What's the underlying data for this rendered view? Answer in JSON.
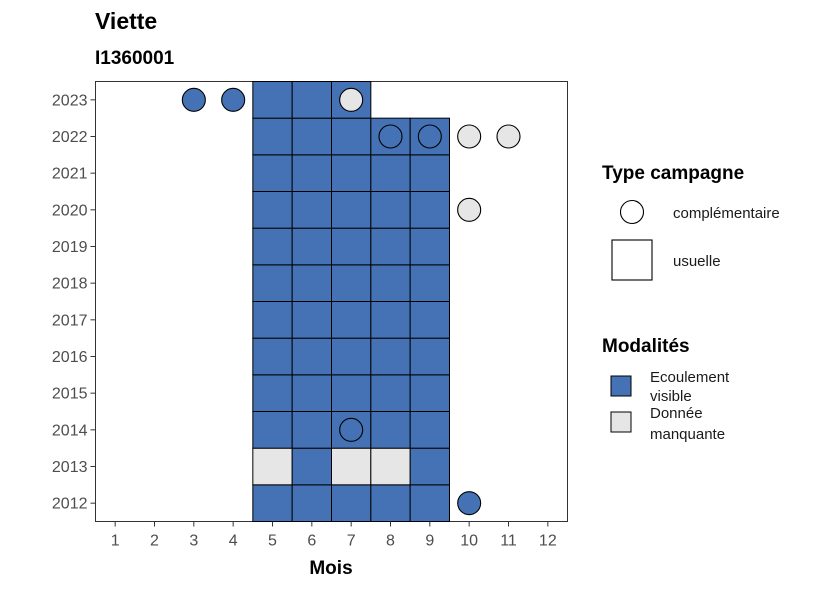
{
  "title": "Viette",
  "subtitle": "I1360001",
  "chart_data": {
    "type": "heatmap",
    "xlabel": "Mois",
    "x_ticks": [
      1,
      2,
      3,
      4,
      5,
      6,
      7,
      8,
      9,
      10,
      11,
      12
    ],
    "y_ticks": [
      2012,
      2013,
      2014,
      2015,
      2016,
      2017,
      2018,
      2019,
      2020,
      2021,
      2022,
      2023
    ],
    "xlim": [
      0.5,
      12.5
    ],
    "ylim": [
      2011.5,
      2023.5
    ],
    "grid": false,
    "legend_placement": "right",
    "colors": {
      "Ecoulement visible": "#4472b4",
      "Donnée manquante": "#e6e6e6"
    },
    "points": [
      {
        "month": 5,
        "year": 2012,
        "modalite": "Ecoulement visible",
        "type": "usuelle"
      },
      {
        "month": 6,
        "year": 2012,
        "modalite": "Ecoulement visible",
        "type": "usuelle"
      },
      {
        "month": 7,
        "year": 2012,
        "modalite": "Ecoulement visible",
        "type": "usuelle"
      },
      {
        "month": 8,
        "year": 2012,
        "modalite": "Ecoulement visible",
        "type": "usuelle"
      },
      {
        "month": 9,
        "year": 2012,
        "modalite": "Ecoulement visible",
        "type": "usuelle"
      },
      {
        "month": 10,
        "year": 2012,
        "modalite": "Ecoulement visible",
        "type": "complémentaire"
      },
      {
        "month": 5,
        "year": 2013,
        "modalite": "Donnée manquante",
        "type": "usuelle"
      },
      {
        "month": 6,
        "year": 2013,
        "modalite": "Ecoulement visible",
        "type": "usuelle"
      },
      {
        "month": 7,
        "year": 2013,
        "modalite": "Donnée manquante",
        "type": "usuelle"
      },
      {
        "month": 8,
        "year": 2013,
        "modalite": "Donnée manquante",
        "type": "usuelle"
      },
      {
        "month": 9,
        "year": 2013,
        "modalite": "Ecoulement visible",
        "type": "usuelle"
      },
      {
        "month": 5,
        "year": 2014,
        "modalite": "Ecoulement visible",
        "type": "usuelle"
      },
      {
        "month": 6,
        "year": 2014,
        "modalite": "Ecoulement visible",
        "type": "usuelle"
      },
      {
        "month": 7,
        "year": 2014,
        "modalite": "Ecoulement visible",
        "type": "usuelle"
      },
      {
        "month": 8,
        "year": 2014,
        "modalite": "Ecoulement visible",
        "type": "usuelle"
      },
      {
        "month": 9,
        "year": 2014,
        "modalite": "Ecoulement visible",
        "type": "usuelle"
      },
      {
        "month": 7,
        "year": 2014,
        "modalite": "Ecoulement visible",
        "type": "complémentaire"
      },
      {
        "month": 5,
        "year": 2015,
        "modalite": "Ecoulement visible",
        "type": "usuelle"
      },
      {
        "month": 6,
        "year": 2015,
        "modalite": "Ecoulement visible",
        "type": "usuelle"
      },
      {
        "month": 7,
        "year": 2015,
        "modalite": "Ecoulement visible",
        "type": "usuelle"
      },
      {
        "month": 8,
        "year": 2015,
        "modalite": "Ecoulement visible",
        "type": "usuelle"
      },
      {
        "month": 9,
        "year": 2015,
        "modalite": "Ecoulement visible",
        "type": "usuelle"
      },
      {
        "month": 5,
        "year": 2016,
        "modalite": "Ecoulement visible",
        "type": "usuelle"
      },
      {
        "month": 6,
        "year": 2016,
        "modalite": "Ecoulement visible",
        "type": "usuelle"
      },
      {
        "month": 7,
        "year": 2016,
        "modalite": "Ecoulement visible",
        "type": "usuelle"
      },
      {
        "month": 8,
        "year": 2016,
        "modalite": "Ecoulement visible",
        "type": "usuelle"
      },
      {
        "month": 9,
        "year": 2016,
        "modalite": "Ecoulement visible",
        "type": "usuelle"
      },
      {
        "month": 5,
        "year": 2017,
        "modalite": "Ecoulement visible",
        "type": "usuelle"
      },
      {
        "month": 6,
        "year": 2017,
        "modalite": "Ecoulement visible",
        "type": "usuelle"
      },
      {
        "month": 7,
        "year": 2017,
        "modalite": "Ecoulement visible",
        "type": "usuelle"
      },
      {
        "month": 8,
        "year": 2017,
        "modalite": "Ecoulement visible",
        "type": "usuelle"
      },
      {
        "month": 9,
        "year": 2017,
        "modalite": "Ecoulement visible",
        "type": "usuelle"
      },
      {
        "month": 5,
        "year": 2018,
        "modalite": "Ecoulement visible",
        "type": "usuelle"
      },
      {
        "month": 6,
        "year": 2018,
        "modalite": "Ecoulement visible",
        "type": "usuelle"
      },
      {
        "month": 7,
        "year": 2018,
        "modalite": "Ecoulement visible",
        "type": "usuelle"
      },
      {
        "month": 8,
        "year": 2018,
        "modalite": "Ecoulement visible",
        "type": "usuelle"
      },
      {
        "month": 9,
        "year": 2018,
        "modalite": "Ecoulement visible",
        "type": "usuelle"
      },
      {
        "month": 5,
        "year": 2019,
        "modalite": "Ecoulement visible",
        "type": "usuelle"
      },
      {
        "month": 6,
        "year": 2019,
        "modalite": "Ecoulement visible",
        "type": "usuelle"
      },
      {
        "month": 7,
        "year": 2019,
        "modalite": "Ecoulement visible",
        "type": "usuelle"
      },
      {
        "month": 8,
        "year": 2019,
        "modalite": "Ecoulement visible",
        "type": "usuelle"
      },
      {
        "month": 9,
        "year": 2019,
        "modalite": "Ecoulement visible",
        "type": "usuelle"
      },
      {
        "month": 5,
        "year": 2020,
        "modalite": "Ecoulement visible",
        "type": "usuelle"
      },
      {
        "month": 6,
        "year": 2020,
        "modalite": "Ecoulement visible",
        "type": "usuelle"
      },
      {
        "month": 7,
        "year": 2020,
        "modalite": "Ecoulement visible",
        "type": "usuelle"
      },
      {
        "month": 8,
        "year": 2020,
        "modalite": "Ecoulement visible",
        "type": "usuelle"
      },
      {
        "month": 9,
        "year": 2020,
        "modalite": "Ecoulement visible",
        "type": "usuelle"
      },
      {
        "month": 10,
        "year": 2020,
        "modalite": "Donnée manquante",
        "type": "complémentaire"
      },
      {
        "month": 5,
        "year": 2021,
        "modalite": "Ecoulement visible",
        "type": "usuelle"
      },
      {
        "month": 6,
        "year": 2021,
        "modalite": "Ecoulement visible",
        "type": "usuelle"
      },
      {
        "month": 7,
        "year": 2021,
        "modalite": "Ecoulement visible",
        "type": "usuelle"
      },
      {
        "month": 8,
        "year": 2021,
        "modalite": "Ecoulement visible",
        "type": "usuelle"
      },
      {
        "month": 9,
        "year": 2021,
        "modalite": "Ecoulement visible",
        "type": "usuelle"
      },
      {
        "month": 5,
        "year": 2022,
        "modalite": "Ecoulement visible",
        "type": "usuelle"
      },
      {
        "month": 6,
        "year": 2022,
        "modalite": "Ecoulement visible",
        "type": "usuelle"
      },
      {
        "month": 7,
        "year": 2022,
        "modalite": "Ecoulement visible",
        "type": "usuelle"
      },
      {
        "month": 8,
        "year": 2022,
        "modalite": "Ecoulement visible",
        "type": "usuelle"
      },
      {
        "month": 9,
        "year": 2022,
        "modalite": "Ecoulement visible",
        "type": "usuelle"
      },
      {
        "month": 8,
        "year": 2022,
        "modalite": "Ecoulement visible",
        "type": "complémentaire"
      },
      {
        "month": 9,
        "year": 2022,
        "modalite": "Ecoulement visible",
        "type": "complémentaire"
      },
      {
        "month": 10,
        "year": 2022,
        "modalite": "Donnée manquante",
        "type": "complémentaire"
      },
      {
        "month": 11,
        "year": 2022,
        "modalite": "Donnée manquante",
        "type": "complémentaire"
      },
      {
        "month": 5,
        "year": 2023,
        "modalite": "Ecoulement visible",
        "type": "usuelle"
      },
      {
        "month": 6,
        "year": 2023,
        "modalite": "Ecoulement visible",
        "type": "usuelle"
      },
      {
        "month": 7,
        "year": 2023,
        "modalite": "Ecoulement visible",
        "type": "usuelle"
      },
      {
        "month": 3,
        "year": 2023,
        "modalite": "Ecoulement visible",
        "type": "complémentaire"
      },
      {
        "month": 4,
        "year": 2023,
        "modalite": "Ecoulement visible",
        "type": "complémentaire"
      },
      {
        "month": 7,
        "year": 2023,
        "modalite": "Donnée manquante",
        "type": "complémentaire"
      }
    ]
  },
  "legend": {
    "type_title": "Type campagne",
    "type_items": [
      {
        "label": "complémentaire",
        "shape": "circle"
      },
      {
        "label": "usuelle",
        "shape": "square"
      }
    ],
    "modal_title": "Modalités",
    "modal_items": [
      {
        "line1": "Ecoulement",
        "line2": "visible",
        "color": "#4472b4"
      },
      {
        "line1": "Donnée",
        "line2": "manquante",
        "color": "#e6e6e6"
      }
    ]
  }
}
